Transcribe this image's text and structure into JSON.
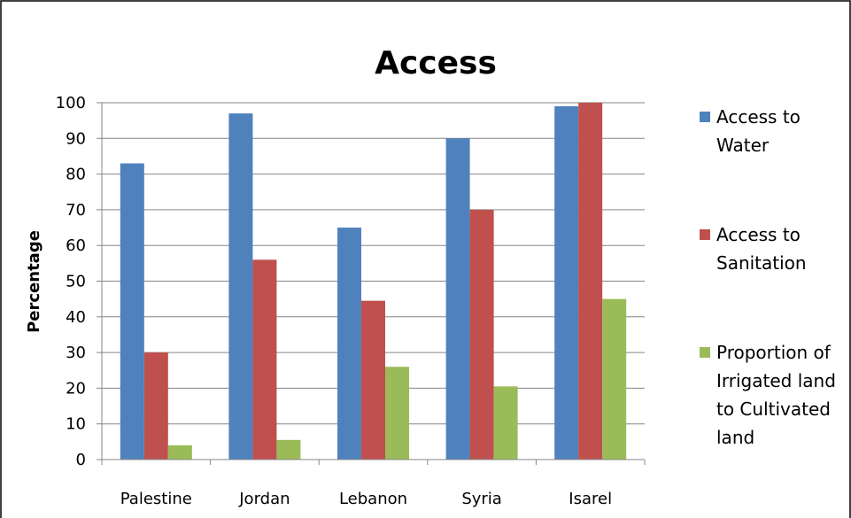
{
  "chart_data": {
    "type": "bar",
    "title": "Access",
    "xlabel": "",
    "ylabel": "Percentage",
    "ylim": [
      0,
      100
    ],
    "yticks": [
      "0",
      "10",
      "20",
      "30",
      "40",
      "50",
      "60",
      "70",
      "80",
      "90",
      "100"
    ],
    "categories": [
      "Palestine",
      "Jordan",
      "Lebanon",
      "Syria",
      "Isarel"
    ],
    "series": [
      {
        "name": "Access to Water",
        "legend_lines": [
          "Access to",
          "Water"
        ],
        "color": "#4F81BD",
        "values": [
          83,
          97,
          65,
          90,
          99
        ]
      },
      {
        "name": "Access to Sanitation",
        "legend_lines": [
          "Access to",
          "Sanitation"
        ],
        "color": "#C0504D",
        "values": [
          30,
          56,
          44.5,
          70,
          100
        ]
      },
      {
        "name": "Proportion of Irrigated land to Cultivated land",
        "legend_lines": [
          "Proportion of",
          "Irrigated land",
          "to Cultivated",
          "land"
        ],
        "color": "#9BBB59",
        "values": [
          4,
          5.5,
          26,
          20.5,
          45
        ]
      }
    ],
    "grid": true,
    "legend_position": "right"
  }
}
